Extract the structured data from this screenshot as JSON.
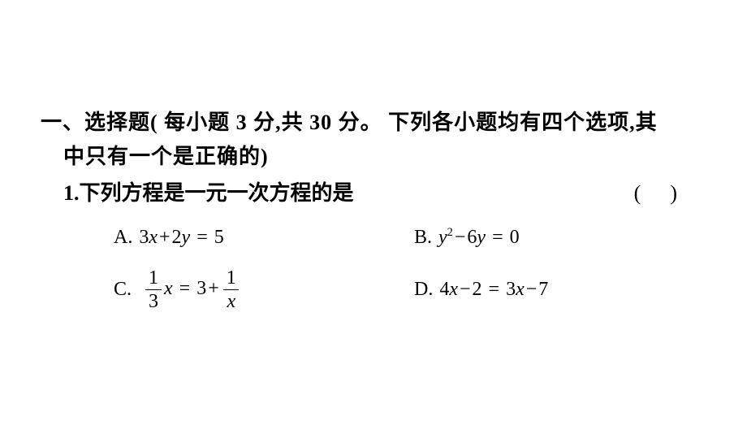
{
  "section": {
    "header_line1": "一、选择题( 每小题 3 分,共 30 分。 下列各小题均有四个选项,其",
    "header_line2": "中只有一个是正确的)"
  },
  "question": {
    "number": "1.",
    "text": "下列方程是一元一次方程的是",
    "paren": "(   )"
  },
  "options": {
    "A": {
      "label": "A.",
      "coef1": "3",
      "var1": "x",
      "op1": "+",
      "coef2": "2",
      "var2": "y",
      "eq": "=",
      "rhs": "5"
    },
    "B": {
      "label": "B.",
      "var1": "y",
      "exp": "2",
      "op1": "−",
      "coef2": "6",
      "var2": "y",
      "eq": "=",
      "rhs": "0"
    },
    "C": {
      "label": "C.",
      "frac1_num": "1",
      "frac1_den": "3",
      "var1": "x",
      "eq": "=",
      "rhs1": "3",
      "op1": "+",
      "frac2_num": "1",
      "frac2_den": "x"
    },
    "D": {
      "label": "D.",
      "coef1": "4",
      "var1": "x",
      "op1": "−",
      "val1": "2",
      "eq": "=",
      "coef2": "3",
      "var2": "x",
      "op2": "−",
      "val2": "7"
    }
  },
  "style": {
    "page_bg": "#ffffff",
    "text_color": "#000000",
    "cjk_fontsize": 26,
    "math_fontsize": 24
  }
}
